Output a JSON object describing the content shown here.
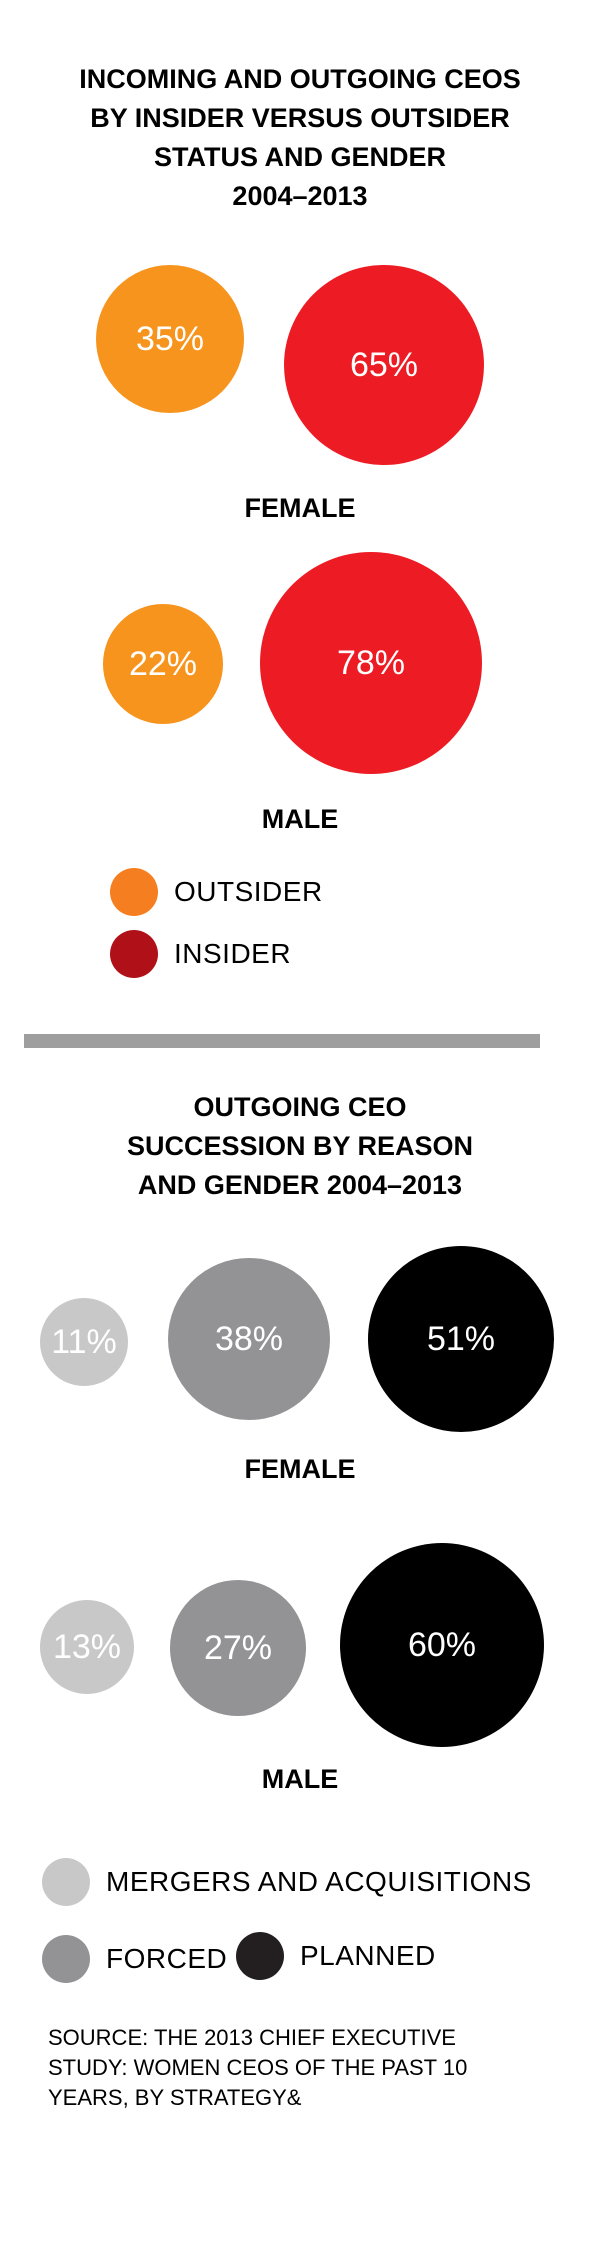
{
  "colors": {
    "outsider": "#f7941e",
    "insider": "#ed1c24",
    "legend_outsider": "#f57f20",
    "legend_insider": "#b01118",
    "mergers": "#c8c8c8",
    "forced": "#939396",
    "planned": "#000000",
    "legend_planned": "#231f20",
    "divider": "#9e9e9e"
  },
  "chart_data": [
    {
      "type": "bubble",
      "title": [
        "INCOMING AND OUTGOING CEOS",
        "BY INSIDER VERSUS OUTSIDER",
        "STATUS AND GENDER",
        "2004–2013"
      ],
      "series": [
        {
          "name": "OUTSIDER",
          "color_key": "outsider"
        },
        {
          "name": "INSIDER",
          "color_key": "insider"
        }
      ],
      "groups": [
        {
          "label": "FEMALE",
          "values": [
            35,
            65
          ],
          "value_labels": [
            "35%",
            "65%"
          ]
        },
        {
          "label": "MALE",
          "values": [
            22,
            78
          ],
          "value_labels": [
            "22%",
            "78%"
          ]
        }
      ],
      "legend": [
        {
          "label": "OUTSIDER",
          "color_key": "legend_outsider"
        },
        {
          "label": "INSIDER",
          "color_key": "legend_insider"
        }
      ]
    },
    {
      "type": "bubble",
      "title": [
        "OUTGOING CEO",
        "SUCCESSION BY REASON",
        "AND GENDER 2004–2013"
      ],
      "series": [
        {
          "name": "MERGERS AND ACQUISITIONS",
          "color_key": "mergers"
        },
        {
          "name": "FORCED",
          "color_key": "forced"
        },
        {
          "name": "PLANNED",
          "color_key": "planned"
        }
      ],
      "groups": [
        {
          "label": "FEMALE",
          "values": [
            11,
            38,
            51
          ],
          "value_labels": [
            "11%",
            "38%",
            "51%"
          ]
        },
        {
          "label": "MALE",
          "values": [
            13,
            27,
            60
          ],
          "value_labels": [
            "13%",
            "27%",
            "60%"
          ]
        }
      ],
      "legend": [
        {
          "label": "MERGERS AND ACQUISITIONS",
          "color_key": "mergers"
        },
        {
          "label": "FORCED",
          "color_key": "forced"
        },
        {
          "label": "PLANNED",
          "color_key": "legend_planned"
        }
      ]
    }
  ],
  "source": [
    "SOURCE: THE 2013 CHIEF EXECUTIVE",
    "STUDY: WOMEN CEOS OF THE PAST 10",
    "YEARS, BY STRATEGY&"
  ]
}
